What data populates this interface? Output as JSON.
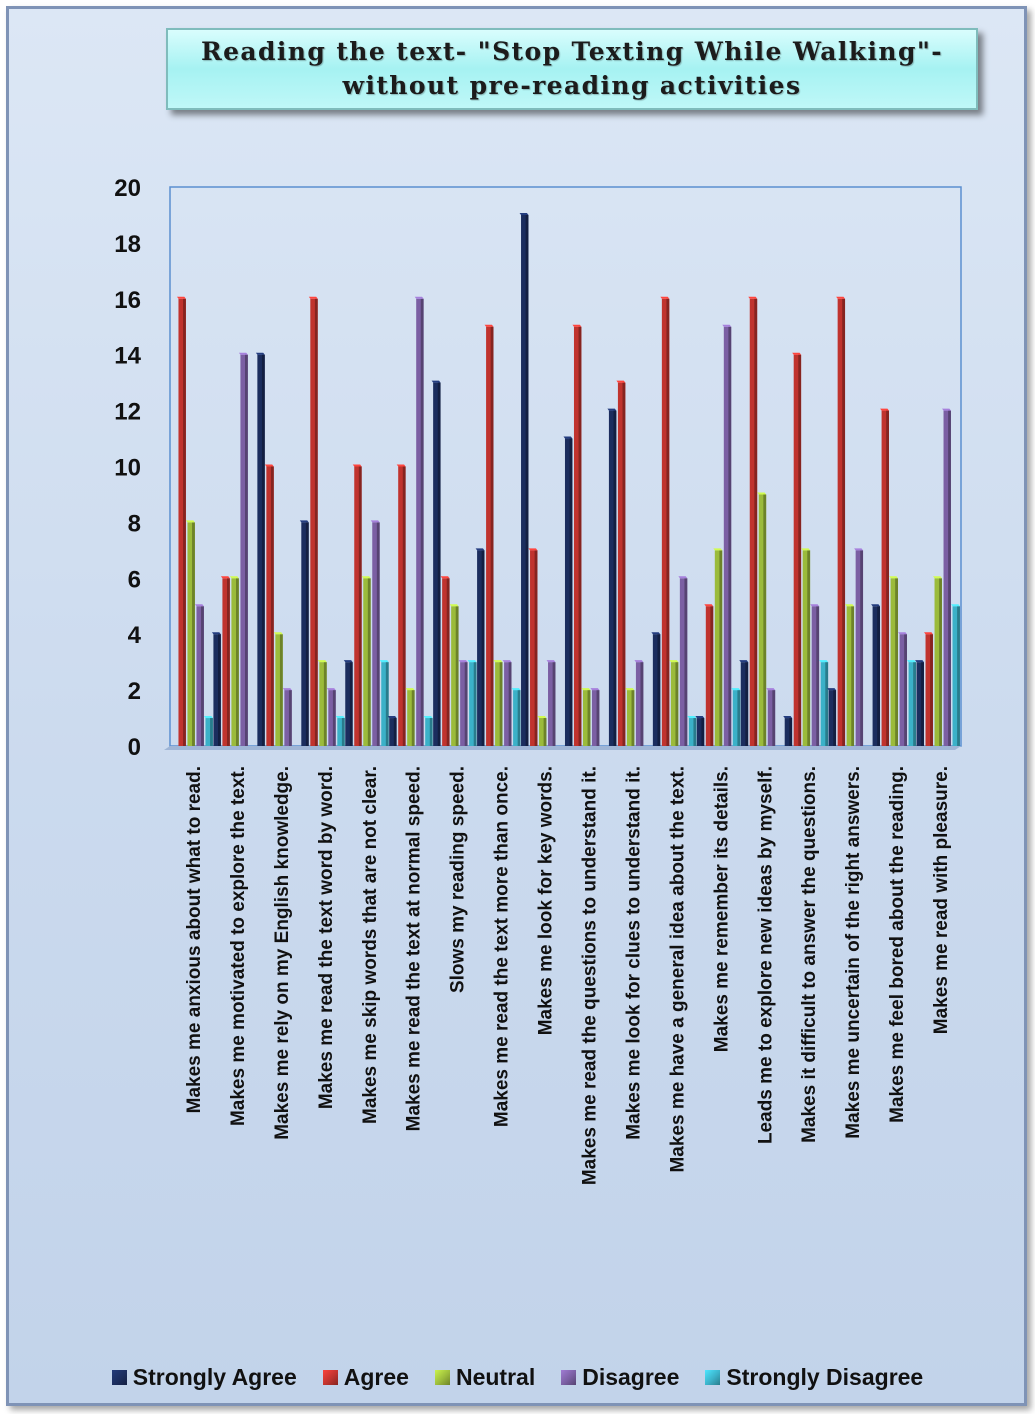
{
  "title": {
    "line1": "Reading the text- \"Stop Texting While Walking\"-",
    "line2": "without pre-reading activities"
  },
  "chart_data": {
    "type": "bar",
    "title": "Reading the text- \"Stop Texting While Walking\"- without pre-reading activities",
    "xlabel": "",
    "ylabel": "",
    "ylim": [
      0,
      20
    ],
    "yticks": [
      0,
      2,
      4,
      6,
      8,
      10,
      12,
      14,
      16,
      18,
      20
    ],
    "grid": false,
    "legend_position": "bottom",
    "categories": [
      "Makes me anxious about what to read.",
      "Makes me motivated to explore the text.",
      "Makes me rely on my English knowledge.",
      "Makes me read the text word by word.",
      "Makes me skip words that are not clear.",
      "Makes me read the text at normal speed.",
      "Slows my reading speed.",
      "Makes me read the text more than once.",
      "Makes me look for key words.",
      "Makes me read the questions to understand it.",
      "Makes me look for clues to understand it.",
      "Makes me have a general idea about the text.",
      "Makes me remember its details.",
      "Leads me to explore new ideas by myself.",
      "Makes it difficult to answer the questions.",
      "Makes me uncertain of the right answers.",
      "Makes me feel bored about the reading.",
      "Makes me read with pleasure."
    ],
    "series": [
      {
        "name": "Strongly Agree",
        "color": "#1b2d5e",
        "values": [
          0,
          4,
          14,
          8,
          3,
          1,
          13,
          7,
          19,
          11,
          12,
          4,
          1,
          3,
          1,
          2,
          5,
          3
        ]
      },
      {
        "name": "Agree",
        "color": "#c0332e",
        "values": [
          16,
          6,
          10,
          16,
          10,
          10,
          6,
          15,
          7,
          15,
          13,
          16,
          5,
          16,
          14,
          16,
          12,
          4
        ]
      },
      {
        "name": "Neutral",
        "color": "#9bbb3b",
        "values": [
          8,
          6,
          4,
          3,
          6,
          2,
          5,
          3,
          1,
          2,
          2,
          3,
          7,
          9,
          7,
          5,
          6,
          6
        ]
      },
      {
        "name": "Disagree",
        "color": "#7b5fa3",
        "values": [
          5,
          14,
          2,
          2,
          8,
          16,
          3,
          3,
          3,
          2,
          3,
          6,
          15,
          2,
          5,
          7,
          4,
          12
        ]
      },
      {
        "name": "Strongly Disagree",
        "color": "#3bb1c8",
        "values": [
          1,
          0,
          0,
          1,
          3,
          1,
          3,
          2,
          0,
          0,
          0,
          1,
          2,
          0,
          3,
          0,
          3,
          5
        ]
      }
    ]
  }
}
